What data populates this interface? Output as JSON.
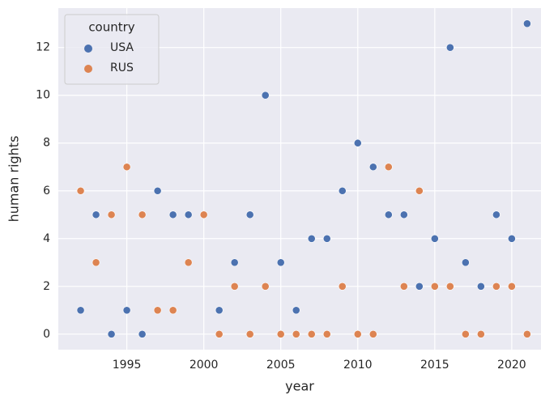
{
  "chart_data": {
    "type": "scatter",
    "x_label": "year",
    "y_label": "human rights",
    "x": [
      1992,
      1993,
      1994,
      1995,
      1996,
      1997,
      1998,
      1999,
      2000,
      2001,
      2002,
      2003,
      2004,
      2005,
      2006,
      2007,
      2008,
      2009,
      2010,
      2011,
      2012,
      2013,
      2014,
      2015,
      2016,
      2017,
      2018,
      2019,
      2020,
      2021
    ],
    "series": [
      {
        "name": "USA",
        "color": "#4c72b0",
        "values": [
          1,
          5,
          0,
          1,
          0,
          6,
          5,
          5,
          5,
          1,
          3,
          5,
          10,
          3,
          1,
          4,
          4,
          6,
          8,
          7,
          5,
          5,
          2,
          4,
          12,
          3,
          2,
          5,
          4,
          13
        ]
      },
      {
        "name": "RUS",
        "color": "#dd8452",
        "values": [
          6,
          3,
          5,
          7,
          5,
          1,
          1,
          3,
          5,
          0,
          2,
          0,
          2,
          0,
          0,
          0,
          0,
          2,
          0,
          0,
          7,
          2,
          6,
          2,
          2,
          0,
          0,
          2,
          2,
          0
        ]
      }
    ],
    "legend_title": "country",
    "legend": "upper left",
    "xlim": [
      1990.55,
      2021.9
    ],
    "xticks": [
      1995,
      2000,
      2005,
      2010,
      2015,
      2020
    ],
    "ylim": [
      -0.65,
      13.65
    ],
    "yticks": [
      0,
      2,
      4,
      6,
      8,
      10,
      12
    ],
    "grid": true,
    "background": "#eaeaf2"
  }
}
